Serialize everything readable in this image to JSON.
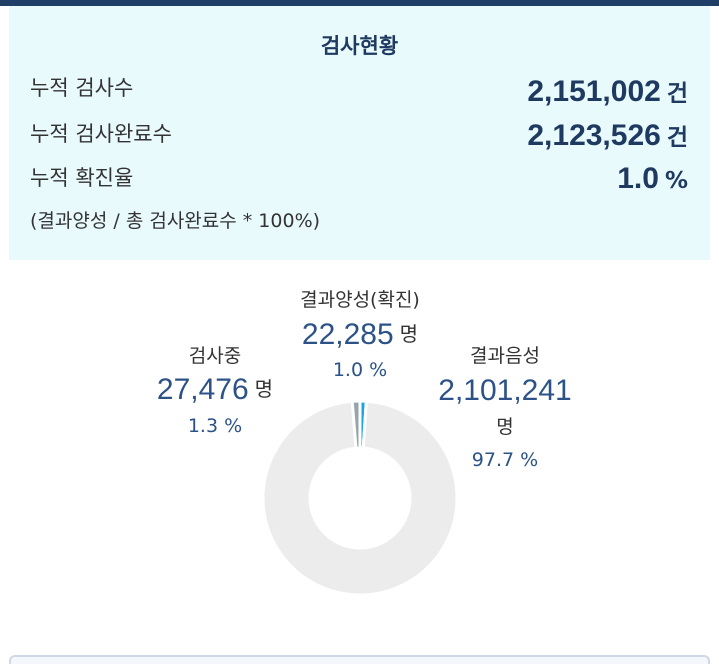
{
  "summary": {
    "title": "검사현황",
    "rows": [
      {
        "label": "누적 검사수",
        "value": "2,151,002",
        "unit": "건"
      },
      {
        "label": "누적 검사완료수",
        "value": "2,123,526",
        "unit": "건"
      },
      {
        "label": "누적 확진율",
        "value": "1.0",
        "unit": "%"
      }
    ],
    "formula": "(결과양성 / 총 검사완료수 * 100%)"
  },
  "chart_data": {
    "type": "pie",
    "donut": true,
    "slices": [
      {
        "label": "결과양성(확진)",
        "value": 22285,
        "display": "22,285",
        "unit": "명",
        "percent": "1.0 %",
        "color": "#1aa6e0"
      },
      {
        "label": "결과음성",
        "value": 2101241,
        "display": "2,101,241",
        "unit": "명",
        "percent": "97.7 %",
        "color": "#ececec"
      },
      {
        "label": "검사중",
        "value": 27476,
        "display": "27,476",
        "unit": "명",
        "percent": "1.3 %",
        "color": "#96a5aa"
      }
    ]
  },
  "colors": {
    "accent": "#1f3a60",
    "positive": "#1aa6e0",
    "negative": "#ececec",
    "pending": "#96a5aa",
    "summary_bg": "#e9fafd"
  }
}
